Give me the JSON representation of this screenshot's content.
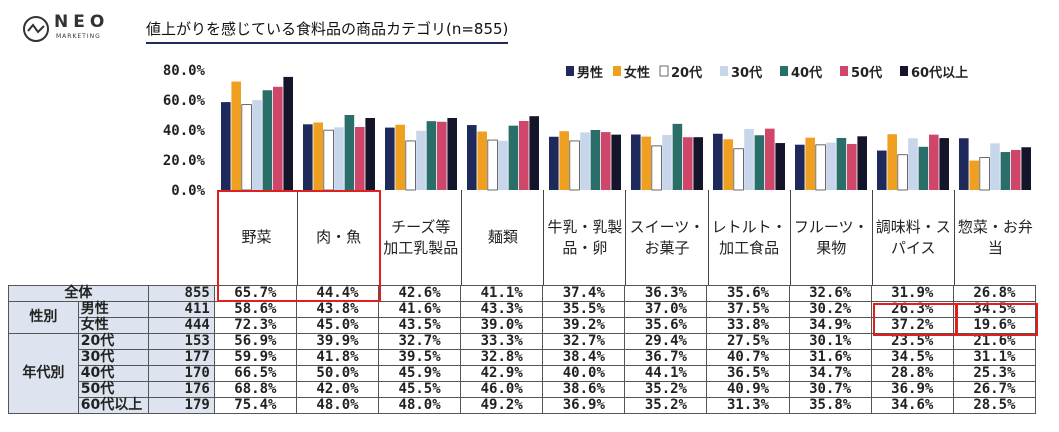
{
  "logo": {
    "word": "NEO",
    "sub": "MARKETING"
  },
  "title": "値上がりを感じている食料品の商品カテゴリ(n=855)",
  "chart_data": {
    "type": "bar",
    "title": "値上がりを感じている食料品の商品カテゴリ(n=855)",
    "ylim": [
      0,
      80
    ],
    "yticks": [
      "0.0%",
      "20.0%",
      "40.0%",
      "60.0%",
      "80.0%"
    ],
    "legend_position": "top-right",
    "categories": [
      "野菜",
      "肉・魚",
      "チーズ等\n加工乳製品",
      "麺類",
      "牛乳・乳製\n品・卵",
      "スイーツ・\nお菓子",
      "レトルト・\n加工食品",
      "フルーツ・\n果物",
      "調味料・ス\nパイス",
      "惣菜・お弁\n当"
    ],
    "series": [
      {
        "name": "男性",
        "color": "#1f2a5c",
        "values": [
          58.6,
          43.8,
          41.6,
          43.3,
          35.5,
          37.0,
          37.5,
          30.2,
          26.3,
          34.5
        ]
      },
      {
        "name": "女性",
        "color": "#f0a020",
        "values": [
          72.3,
          45.0,
          43.5,
          39.0,
          39.2,
          35.6,
          33.8,
          34.9,
          37.2,
          19.6
        ]
      },
      {
        "name": "20代",
        "color": "#ffffff",
        "values": [
          56.9,
          39.9,
          32.7,
          33.3,
          32.7,
          29.4,
          27.5,
          30.1,
          23.5,
          21.6
        ]
      },
      {
        "name": "30代",
        "color": "#c7d6ea",
        "values": [
          59.9,
          41.8,
          39.5,
          32.8,
          38.4,
          36.7,
          40.7,
          31.6,
          34.5,
          31.1
        ]
      },
      {
        "name": "40代",
        "color": "#2a6e6a",
        "values": [
          66.5,
          50.0,
          45.9,
          42.9,
          40.0,
          44.1,
          36.5,
          34.7,
          28.8,
          25.3
        ]
      },
      {
        "name": "50代",
        "color": "#d0456a",
        "values": [
          68.8,
          42.0,
          45.5,
          46.0,
          38.6,
          35.2,
          40.9,
          30.7,
          36.9,
          26.7
        ]
      },
      {
        "name": "60代以上",
        "color": "#14142a",
        "values": [
          75.4,
          48.0,
          48.0,
          49.2,
          36.9,
          35.2,
          31.3,
          35.8,
          34.6,
          28.5
        ]
      }
    ]
  },
  "table": {
    "rows": [
      {
        "group": "全体",
        "sub": "",
        "n": "855",
        "values": [
          "65.7%",
          "44.4%",
          "42.6%",
          "41.1%",
          "37.4%",
          "36.3%",
          "35.6%",
          "32.6%",
          "31.9%",
          "26.8%"
        ]
      },
      {
        "group": "性別",
        "sub": "男性",
        "n": "411",
        "values": [
          "58.6%",
          "43.8%",
          "41.6%",
          "43.3%",
          "35.5%",
          "37.0%",
          "37.5%",
          "30.2%",
          "26.3%",
          "34.5%"
        ]
      },
      {
        "group": "",
        "sub": "女性",
        "n": "444",
        "values": [
          "72.3%",
          "45.0%",
          "43.5%",
          "39.0%",
          "39.2%",
          "35.6%",
          "33.8%",
          "34.9%",
          "37.2%",
          "19.6%"
        ]
      },
      {
        "group": "年代別",
        "sub": "20代",
        "n": "153",
        "values": [
          "56.9%",
          "39.9%",
          "32.7%",
          "33.3%",
          "32.7%",
          "29.4%",
          "27.5%",
          "30.1%",
          "23.5%",
          "21.6%"
        ]
      },
      {
        "group": "",
        "sub": "30代",
        "n": "177",
        "values": [
          "59.9%",
          "41.8%",
          "39.5%",
          "32.8%",
          "38.4%",
          "36.7%",
          "40.7%",
          "31.6%",
          "34.5%",
          "31.1%"
        ]
      },
      {
        "group": "",
        "sub": "40代",
        "n": "170",
        "values": [
          "66.5%",
          "50.0%",
          "45.9%",
          "42.9%",
          "40.0%",
          "44.1%",
          "36.5%",
          "34.7%",
          "28.8%",
          "25.3%"
        ]
      },
      {
        "group": "",
        "sub": "50代",
        "n": "176",
        "values": [
          "68.8%",
          "42.0%",
          "45.5%",
          "46.0%",
          "38.6%",
          "35.2%",
          "40.9%",
          "30.7%",
          "36.9%",
          "26.7%"
        ]
      },
      {
        "group": "",
        "sub": "60代以上",
        "n": "179",
        "values": [
          "75.4%",
          "48.0%",
          "48.0%",
          "49.2%",
          "36.9%",
          "35.2%",
          "31.3%",
          "35.8%",
          "34.6%",
          "28.5%"
        ]
      }
    ]
  }
}
